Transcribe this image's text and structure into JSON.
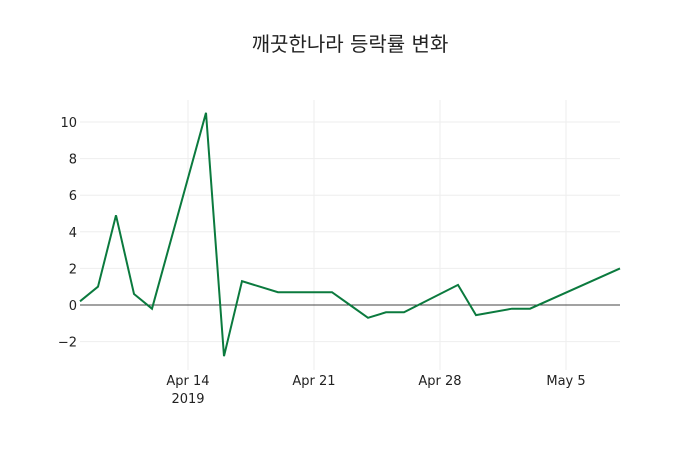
{
  "chart_data": {
    "type": "line",
    "title": "깨끗한나라 등락률 변화",
    "xlabel": "",
    "ylabel": "",
    "x": [
      "2019-04-08",
      "2019-04-09",
      "2019-04-10",
      "2019-04-11",
      "2019-04-12",
      "2019-04-15",
      "2019-04-16",
      "2019-04-17",
      "2019-04-18",
      "2019-04-19",
      "2019-04-22",
      "2019-04-23",
      "2019-04-24",
      "2019-04-25",
      "2019-04-26",
      "2019-04-29",
      "2019-04-30",
      "2019-05-02",
      "2019-05-03",
      "2019-05-08"
    ],
    "series": [
      {
        "name": "등락률",
        "color": "#0b7a3e",
        "values": [
          0.2,
          1.0,
          4.9,
          0.6,
          -0.2,
          10.5,
          -2.8,
          1.3,
          1.0,
          0.7,
          0.7,
          0.0,
          -0.7,
          -0.4,
          -0.4,
          1.1,
          -0.55,
          -0.2,
          -0.2,
          2.0
        ]
      }
    ],
    "ylim": [
      -3.2,
      11.0
    ],
    "yticks": [
      -2,
      0,
      2,
      4,
      6,
      8,
      10
    ],
    "ytick_labels": [
      "−2",
      "0",
      "2",
      "4",
      "6",
      "8",
      "10"
    ],
    "xtick_labels": [
      "Apr 14",
      "Apr 21",
      "Apr 28",
      "May 5"
    ],
    "xtick_sub": "2019",
    "grid": true,
    "zero_line": true
  }
}
